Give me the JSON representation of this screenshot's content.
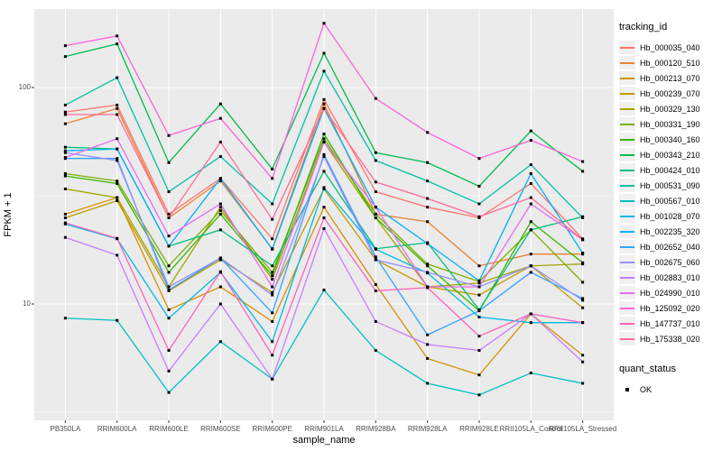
{
  "chart_data": {
    "type": "line",
    "title": "",
    "xlabel": "sample_name",
    "ylabel": "FPKM + 1",
    "y_scale": "log10",
    "ylim": [
      2.9,
      230
    ],
    "y_ticks": [
      10,
      100
    ],
    "y_minor_gridlines": [
      3.1623,
      31.623
    ],
    "grid": "on",
    "panel_bg": "#EBEBEB",
    "grid_color": "#FFFFFF",
    "point_marker": "small-black-square",
    "categories": [
      "PB350LA",
      "RRIM600LA",
      "RRIM600LE",
      "RRIM600SE",
      "RRIM600PE",
      "RRIM901LA",
      "RRIM928BA",
      "RRIM928LA",
      "RRIM928LE",
      "RRII105LA_Control",
      "RRII105LA_Stressed"
    ],
    "series": [
      {
        "name": "Hb_000035_040",
        "color": "#F8766D",
        "values": [
          77,
          83,
          26,
          38,
          20,
          88,
          33,
          28,
          25,
          36,
          20
        ]
      },
      {
        "name": "Hb_000120_510",
        "color": "#EA8331",
        "values": [
          68,
          80,
          25,
          37,
          18,
          84,
          26,
          24,
          15,
          17,
          17
        ]
      },
      {
        "name": "Hb_000213_070",
        "color": "#D89000",
        "values": [
          26,
          31,
          9.4,
          12,
          8.3,
          28,
          12.3,
          5.6,
          4.7,
          9,
          5.8
        ]
      },
      {
        "name": "Hb_000239_070",
        "color": "#C09B00",
        "values": [
          25,
          30,
          11.5,
          16,
          11.3,
          34,
          16,
          12,
          11,
          15,
          9.6
        ]
      },
      {
        "name": "Hb_000329_130",
        "color": "#A3A500",
        "values": [
          34,
          31,
          12,
          28,
          13,
          56,
          25,
          12,
          12.5,
          15,
          15.3
        ]
      },
      {
        "name": "Hb_000331_190",
        "color": "#7CAE00",
        "values": [
          40,
          37,
          15,
          27,
          14,
          58,
          26,
          15.3,
          12.7,
          22,
          12.6
        ]
      },
      {
        "name": "Hb_000340_160",
        "color": "#39B600",
        "values": [
          39,
          36,
          14,
          26,
          13.5,
          61,
          25,
          15,
          9.3,
          24,
          15.5
        ]
      },
      {
        "name": "Hb_000343_210",
        "color": "#00BB4E",
        "values": [
          139,
          159,
          45,
          84,
          42,
          144,
          50,
          45,
          35,
          63,
          41
        ]
      },
      {
        "name": "Hb_000424_010",
        "color": "#00BF7D",
        "values": [
          53,
          52,
          18.5,
          22,
          15,
          41,
          18,
          19.2,
          9.4,
          22,
          25.3
        ]
      },
      {
        "name": "Hb_000531_090",
        "color": "#00C1A3",
        "values": [
          83,
          111,
          33,
          48,
          29,
          119,
          46,
          37,
          29,
          44,
          25
        ]
      },
      {
        "name": "Hb_000567_010",
        "color": "#00BFC4",
        "values": [
          8.6,
          8.4,
          3.9,
          6.7,
          4.5,
          11.6,
          6.1,
          4.3,
          3.8,
          4.8,
          4.3
        ]
      },
      {
        "name": "Hb_001028_070",
        "color": "#00BAE0",
        "values": [
          23.4,
          20,
          8.6,
          14,
          6.7,
          34.5,
          17.9,
          13.9,
          8.7,
          8.2,
          8.2
        ]
      },
      {
        "name": "Hb_002235_320",
        "color": "#00B0F6",
        "values": [
          51,
          52,
          18.5,
          38,
          17.9,
          80,
          28,
          19,
          12.8,
          40,
          17.2
        ]
      },
      {
        "name": "Hb_002652_040",
        "color": "#35A2FF",
        "values": [
          47,
          47,
          11.6,
          16.3,
          9.1,
          49,
          16.5,
          7.2,
          9.3,
          14,
          10.6
        ]
      },
      {
        "name": "Hb_002675_060",
        "color": "#9590FF",
        "values": [
          50,
          46,
          12,
          16.3,
          11,
          48,
          16,
          14,
          12,
          15,
          10.4
        ]
      },
      {
        "name": "Hb_002883_010",
        "color": "#C77CFF",
        "values": [
          20.3,
          16.8,
          4.9,
          10,
          4.5,
          22.3,
          8.3,
          6.5,
          6.1,
          9,
          5.4
        ]
      },
      {
        "name": "Hb_024990_010",
        "color": "#E76BF3",
        "values": [
          47.5,
          58,
          20.6,
          29,
          12,
          56,
          28,
          12,
          12,
          29,
          19.8
        ]
      },
      {
        "name": "Hb_125092_020",
        "color": "#FA62DB",
        "values": [
          156,
          173,
          60,
          72,
          38,
          198,
          89,
          62,
          47,
          57,
          45.5
        ]
      },
      {
        "name": "Hb_147737_010",
        "color": "#FF62BC",
        "values": [
          23.7,
          20.1,
          6.1,
          14.1,
          5.8,
          25,
          11.5,
          11.9,
          7.1,
          9,
          8.2
        ]
      },
      {
        "name": "Hb_175338_020",
        "color": "#FF6A98",
        "values": [
          75,
          75,
          25,
          56,
          24.6,
          80,
          36.6,
          30.7,
          25.3,
          31,
          19.8
        ]
      }
    ],
    "legend": {
      "position": "right",
      "color_title": "tracking_id",
      "shape_title": "quant_status",
      "shape_items": [
        {
          "label": "OK",
          "marker": "black-square"
        }
      ]
    }
  }
}
